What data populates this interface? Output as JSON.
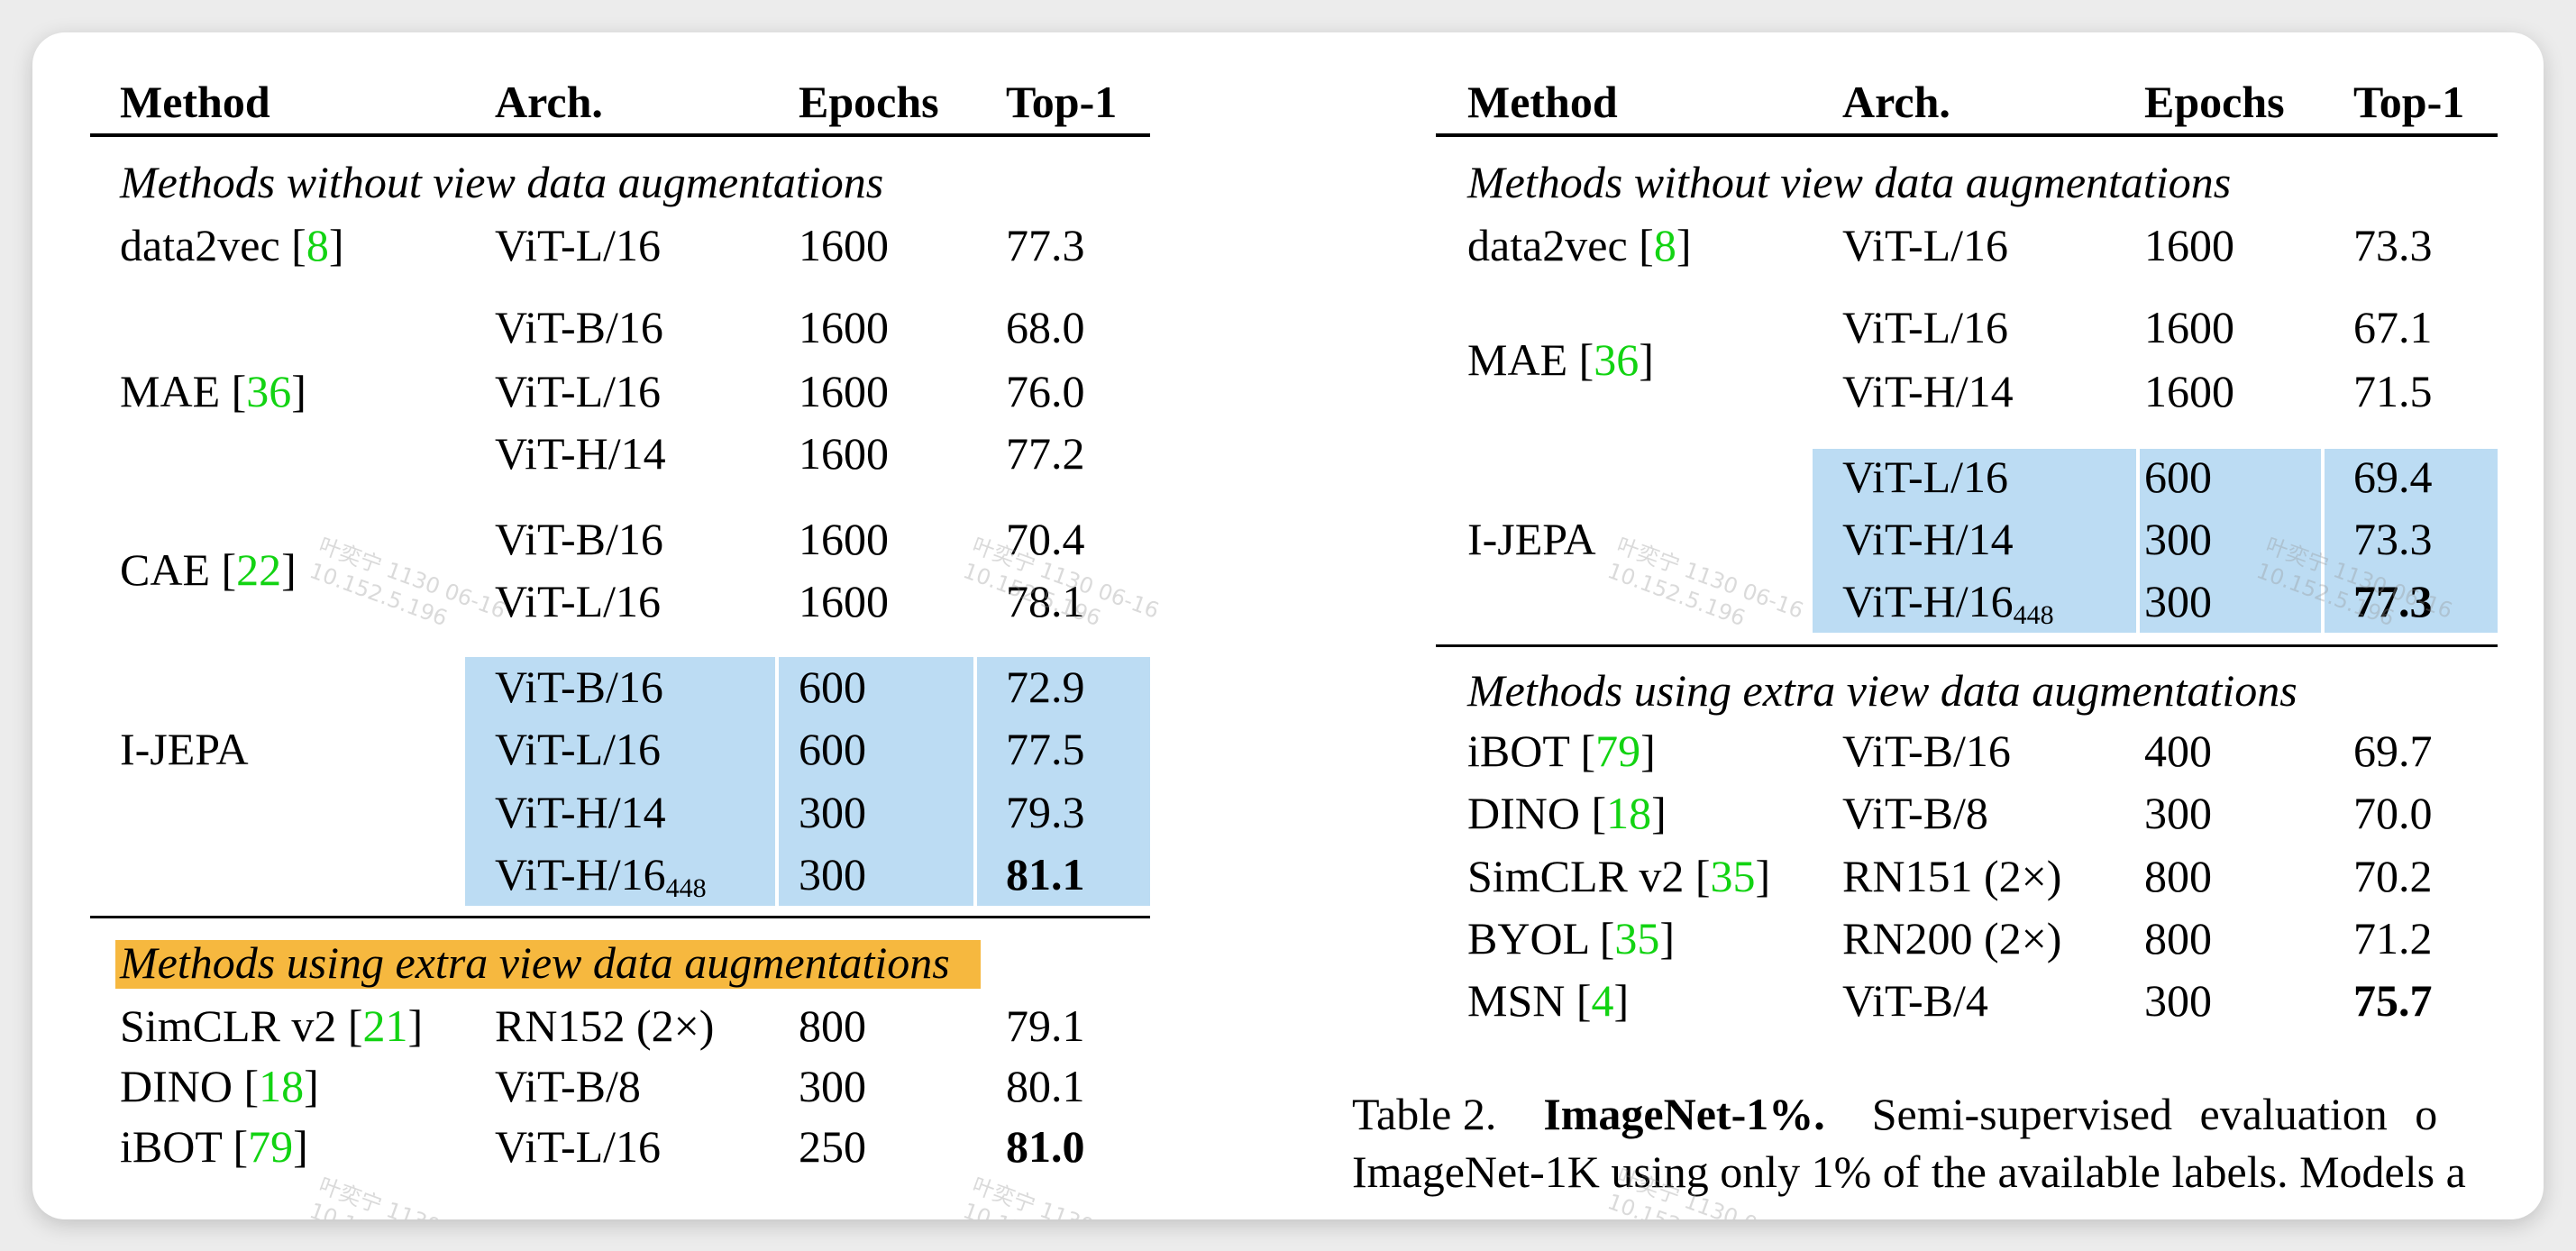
{
  "colors": {
    "highlight_blue": "#bcdcf3",
    "highlight_orange": "#f6b83f",
    "ref_green": "#12d312"
  },
  "left_table": {
    "headers": [
      "Method",
      "Arch.",
      "Epochs",
      "Top-1"
    ],
    "sections": [
      {
        "title": "Methods without view data augmentations",
        "highlighted": false,
        "groups": [
          {
            "method": "data2vec",
            "ref": "8",
            "rows": [
              {
                "arch": "ViT-L/16",
                "epochs": "1600",
                "top1": "77.3"
              }
            ]
          },
          {
            "method": "MAE",
            "ref": "36",
            "rows": [
              {
                "arch": "ViT-B/16",
                "epochs": "1600",
                "top1": "68.0"
              },
              {
                "arch": "ViT-L/16",
                "epochs": "1600",
                "top1": "76.0"
              },
              {
                "arch": "ViT-H/14",
                "epochs": "1600",
                "top1": "77.2"
              }
            ]
          },
          {
            "method": "CAE",
            "ref": "22",
            "rows": [
              {
                "arch": "ViT-B/16",
                "epochs": "1600",
                "top1": "70.4"
              },
              {
                "arch": "ViT-L/16",
                "epochs": "1600",
                "top1": "78.1"
              }
            ]
          },
          {
            "method": "I-JEPA",
            "ref": "",
            "ours": true,
            "rows": [
              {
                "arch": "ViT-B/16",
                "epochs": "600",
                "top1": "72.9"
              },
              {
                "arch": "ViT-L/16",
                "epochs": "600",
                "top1": "77.5"
              },
              {
                "arch": "ViT-H/14",
                "epochs": "300",
                "top1": "79.3"
              },
              {
                "arch": "ViT-H/16",
                "arch_sub": "448",
                "epochs": "300",
                "top1": "81.1",
                "bold": true
              }
            ]
          }
        ]
      },
      {
        "title": "Methods using extra view data augmentations",
        "highlighted": true,
        "groups": [
          {
            "method": "SimCLR v2",
            "ref": "21",
            "rows": [
              {
                "arch": "RN152 (2×)",
                "epochs": "800",
                "top1": "79.1"
              }
            ]
          },
          {
            "method": "DINO",
            "ref": "18",
            "rows": [
              {
                "arch": "ViT-B/8",
                "epochs": "300",
                "top1": "80.1"
              }
            ]
          },
          {
            "method": "iBOT",
            "ref": "79",
            "rows": [
              {
                "arch": "ViT-L/16",
                "epochs": "250",
                "top1": "81.0",
                "bold": true
              }
            ]
          }
        ]
      }
    ]
  },
  "right_table": {
    "headers": [
      "Method",
      "Arch.",
      "Epochs",
      "Top-1"
    ],
    "sections": [
      {
        "title": "Methods without view data augmentations",
        "highlighted": false,
        "groups": [
          {
            "method": "data2vec",
            "ref": "8",
            "rows": [
              {
                "arch": "ViT-L/16",
                "epochs": "1600",
                "top1": "73.3"
              }
            ]
          },
          {
            "method": "MAE",
            "ref": "36",
            "rows": [
              {
                "arch": "ViT-L/16",
                "epochs": "1600",
                "top1": "67.1"
              },
              {
                "arch": "ViT-H/14",
                "epochs": "1600",
                "top1": "71.5"
              }
            ]
          },
          {
            "method": "I-JEPA",
            "ref": "",
            "ours": true,
            "rows": [
              {
                "arch": "ViT-L/16",
                "epochs": "600",
                "top1": "69.4"
              },
              {
                "arch": "ViT-H/14",
                "epochs": "300",
                "top1": "73.3"
              },
              {
                "arch": "ViT-H/16",
                "arch_sub": "448",
                "epochs": "300",
                "top1": "77.3",
                "bold": true
              }
            ]
          }
        ]
      },
      {
        "title": "Methods using extra view data augmentations",
        "highlighted": false,
        "groups": [
          {
            "method": "iBOT",
            "ref": "79",
            "rows": [
              {
                "arch": "ViT-B/16",
                "epochs": "400",
                "top1": "69.7"
              }
            ]
          },
          {
            "method": "DINO",
            "ref": "18",
            "rows": [
              {
                "arch": "ViT-B/8",
                "epochs": "300",
                "top1": "70.0"
              }
            ]
          },
          {
            "method": "SimCLR v2",
            "ref": "35",
            "rows": [
              {
                "arch": "RN151 (2×)",
                "epochs": "800",
                "top1": "70.2"
              }
            ]
          },
          {
            "method": "BYOL",
            "ref": "35",
            "rows": [
              {
                "arch": "RN200 (2×)",
                "epochs": "800",
                "top1": "71.2"
              }
            ]
          },
          {
            "method": "MSN",
            "ref": "4",
            "rows": [
              {
                "arch": "ViT-B/4",
                "epochs": "300",
                "top1": "75.7",
                "bold": true
              }
            ]
          }
        ]
      }
    ]
  },
  "caption": {
    "label": "Table 2.",
    "title": "ImageNet-1%.",
    "line1_rest": "Semi-supervised evaluation o",
    "line2": "ImageNet-1K using only 1% of the available labels. Models a"
  },
  "watermark": {
    "line1": "叶奕宁 1130 06-16",
    "line2": "10.152.5.196"
  }
}
